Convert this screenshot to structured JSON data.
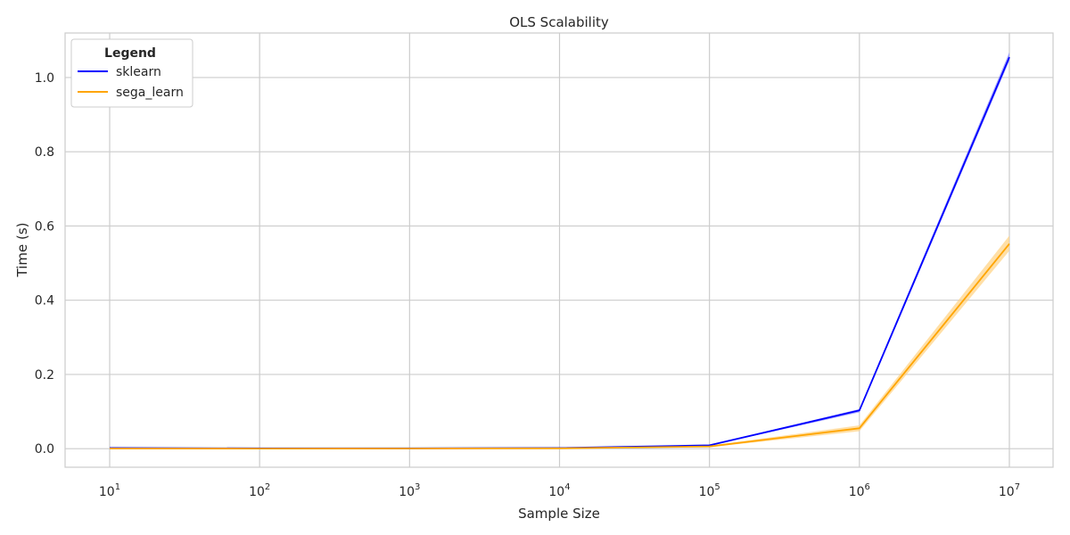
{
  "chart_data": {
    "type": "line",
    "title": "OLS Scalability",
    "xlabel": "Sample Size",
    "ylabel": "Time (s)",
    "x_scale": "log",
    "x": [
      10,
      100,
      1000,
      10000,
      100000,
      1000000,
      10000000
    ],
    "x_tick_labels": [
      {
        "base": "10",
        "exp": "1"
      },
      {
        "base": "10",
        "exp": "2"
      },
      {
        "base": "10",
        "exp": "3"
      },
      {
        "base": "10",
        "exp": "4"
      },
      {
        "base": "10",
        "exp": "5"
      },
      {
        "base": "10",
        "exp": "6"
      },
      {
        "base": "10",
        "exp": "7"
      }
    ],
    "y_ticks": [
      "0.0",
      "0.2",
      "0.4",
      "0.6",
      "0.8",
      "1.0"
    ],
    "ylim": [
      -0.05,
      1.12
    ],
    "grid": true,
    "legend": {
      "title": "Legend",
      "position": "top-left"
    },
    "series": [
      {
        "name": "sklearn",
        "color": "#0000ff",
        "band_color": "#8080ff",
        "values": [
          0.002,
          0.001,
          0.001,
          0.002,
          0.009,
          0.103,
          1.055
        ],
        "lower": [
          0.001,
          0.0005,
          0.0005,
          0.0015,
          0.008,
          0.098,
          1.045
        ],
        "upper": [
          0.003,
          0.0015,
          0.0015,
          0.0025,
          0.01,
          0.107,
          1.068
        ]
      },
      {
        "name": "sega_learn",
        "color": "#ffa500",
        "band_color": "#ffd280",
        "values": [
          0.0005,
          0.0003,
          0.0004,
          0.001,
          0.006,
          0.055,
          0.552
        ],
        "lower": [
          0.0002,
          0.0001,
          0.0002,
          0.0007,
          0.004,
          0.047,
          0.533
        ],
        "upper": [
          0.0008,
          0.0005,
          0.0006,
          0.0013,
          0.008,
          0.063,
          0.574
        ]
      }
    ]
  }
}
